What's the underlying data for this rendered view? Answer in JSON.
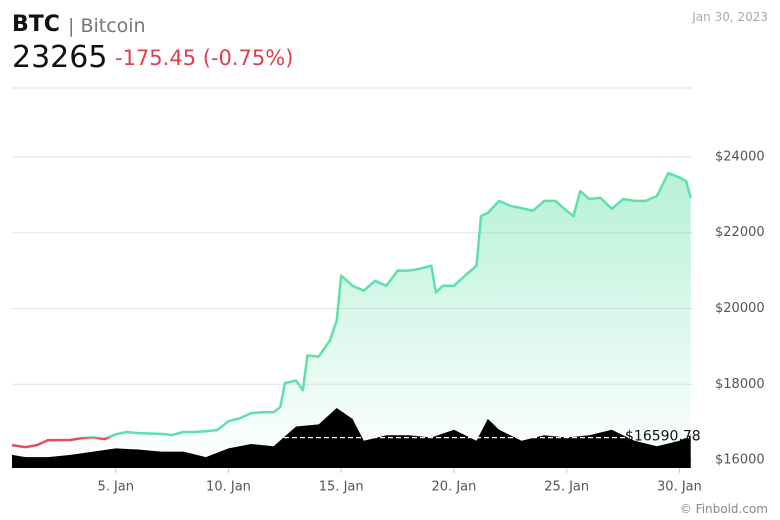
{
  "chart_data": {
    "type": "line",
    "symbol": "BTC",
    "name": "| Bitcoin",
    "price": 23265,
    "change": "-175.45 (-0.75%)",
    "date": "Jan 30, 2023",
    "source": "© Finbold.com",
    "color": "#5fe0aa",
    "down_color": "#e0505a",
    "volume_color": "#000000",
    "grid": true,
    "x": [
      0.4,
      1,
      1.5,
      2,
      3,
      3.5,
      4,
      4.5,
      5,
      5.5,
      6,
      7,
      7.5,
      8,
      8.5,
      9,
      9.5,
      10,
      10.5,
      11,
      11.5,
      12,
      12.3,
      12.5,
      13,
      13.3,
      13.5,
      14,
      14.5,
      14.8,
      15,
      15.5,
      16,
      16.5,
      17,
      17.5,
      18,
      18.5,
      19,
      19.2,
      19.5,
      20,
      20.5,
      21,
      21.2,
      21.5,
      22,
      22.5,
      23,
      23.5,
      24,
      24.5,
      25,
      25.3,
      25.6,
      26,
      26.5,
      27,
      27.5,
      28,
      28.5,
      29,
      29.5,
      30,
      30.3,
      30.5
    ],
    "values": [
      16395,
      16340,
      16395,
      16526,
      16530,
      16580,
      16600,
      16550,
      16680,
      16740,
      16710,
      16690,
      16660,
      16740,
      16740,
      16760,
      16790,
      17025,
      17100,
      17240,
      17260,
      17260,
      17400,
      18030,
      18100,
      17840,
      18760,
      18730,
      19160,
      19680,
      20870,
      20600,
      20470,
      20730,
      20600,
      21000,
      21000,
      21050,
      21130,
      20420,
      20600,
      20600,
      20870,
      21130,
      22440,
      22520,
      22840,
      22710,
      22650,
      22580,
      22840,
      22840,
      22580,
      22440,
      23100,
      22890,
      22920,
      22630,
      22890,
      22840,
      22840,
      22970,
      23570,
      23460,
      23360,
      22920
    ],
    "baseline": {
      "value": 16590.78,
      "label": "$16590.78"
    },
    "volume": {
      "x": [
        0.4,
        1,
        2,
        3,
        4,
        5,
        6,
        7,
        8,
        9,
        10,
        11,
        12,
        13,
        14,
        14.8,
        15.5,
        16,
        17,
        18,
        19,
        20,
        21,
        21.5,
        22,
        23,
        24,
        25,
        26,
        27,
        28,
        29,
        30,
        30.5
      ],
      "values": [
        12,
        10,
        10,
        12,
        15,
        18,
        17,
        15,
        15,
        10,
        18,
        22,
        20,
        38,
        40,
        55,
        45,
        25,
        30,
        30,
        28,
        35,
        25,
        45,
        35,
        25,
        30,
        28,
        30,
        35,
        25,
        20,
        25,
        30
      ]
    },
    "xlim": [
      0.4,
      30.6
    ],
    "xticks": [
      {
        "value": 5,
        "label": "5. Jan"
      },
      {
        "value": 10,
        "label": "10. Jan"
      },
      {
        "value": 15,
        "label": "15. Jan"
      },
      {
        "value": 20,
        "label": "20. Jan"
      },
      {
        "value": 25,
        "label": "25. Jan"
      },
      {
        "value": 30,
        "label": "30. Jan"
      }
    ],
    "ylim": [
      15790,
      25820
    ],
    "yticks": [
      {
        "value": 16000,
        "label": "$16000"
      },
      {
        "value": 18000,
        "label": "$18000"
      },
      {
        "value": 20000,
        "label": "$20000"
      },
      {
        "value": 22000,
        "label": "$22000"
      },
      {
        "value": 24000,
        "label": "$24000"
      }
    ]
  }
}
